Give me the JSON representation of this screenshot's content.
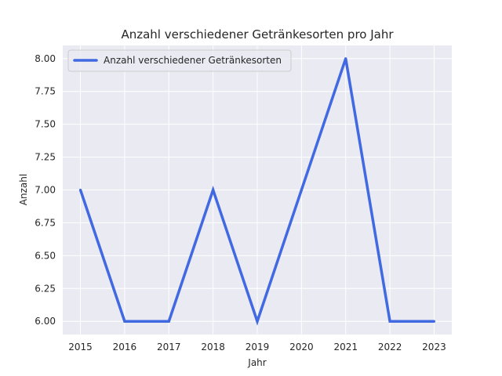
{
  "chart_data": {
    "type": "line",
    "title": "Anzahl verschiedener Getränkesorten pro Jahr",
    "xlabel": "Jahr",
    "ylabel": "Anzahl",
    "x": [
      2015,
      2016,
      2017,
      2018,
      2019,
      2020,
      2021,
      2022,
      2023
    ],
    "series": [
      {
        "name": "Anzahl verschiedener Getränkesorten",
        "values": [
          7,
          6,
          6,
          7,
          6,
          7,
          8,
          6,
          6
        ],
        "color": "#4169e1"
      }
    ],
    "x_ticks": [
      "2015",
      "2016",
      "2017",
      "2018",
      "2019",
      "2020",
      "2021",
      "2022",
      "2023"
    ],
    "y_ticks": [
      "6.00",
      "6.25",
      "6.50",
      "6.75",
      "7.00",
      "7.25",
      "7.50",
      "7.75",
      "8.00"
    ],
    "xlim": [
      2014.6,
      2023.4
    ],
    "ylim": [
      5.9,
      8.1
    ],
    "grid": true,
    "background": "#eaeaf2",
    "legend_position": "upper left"
  }
}
